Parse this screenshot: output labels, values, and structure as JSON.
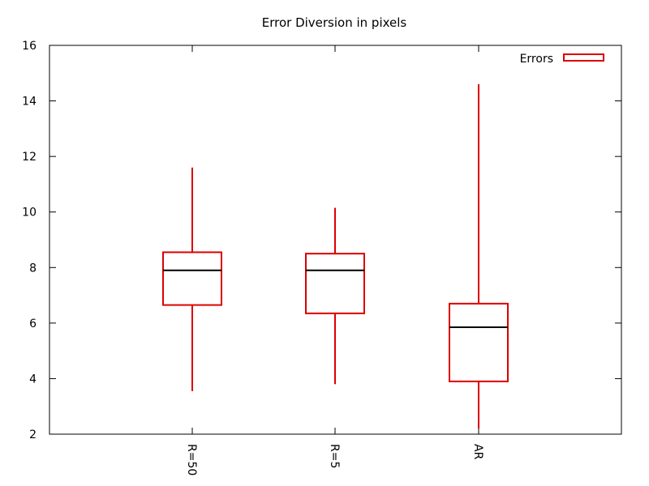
{
  "chart_data": {
    "type": "box",
    "title": "Error Diversion in pixels",
    "xlabel": "",
    "ylabel": "",
    "ylim": [
      2,
      16
    ],
    "yticks": [
      2,
      4,
      6,
      8,
      10,
      12,
      14,
      16
    ],
    "categories": [
      "R=50",
      "R=5",
      "AR"
    ],
    "legend": {
      "label": "Errors",
      "position": "top-right"
    },
    "grid": false,
    "series": [
      {
        "name": "Errors",
        "color": "#dd0000",
        "median_color": "#000000",
        "boxes": [
          {
            "category": "R=50",
            "min": 3.55,
            "q1": 6.65,
            "median": 7.9,
            "q3": 8.55,
            "max": 11.6
          },
          {
            "category": "R=5",
            "min": 3.8,
            "q1": 6.35,
            "median": 7.9,
            "q3": 8.5,
            "max": 10.15
          },
          {
            "category": "AR",
            "min": 2.2,
            "q1": 3.9,
            "median": 5.85,
            "q3": 6.7,
            "max": 14.6
          }
        ]
      }
    ]
  }
}
